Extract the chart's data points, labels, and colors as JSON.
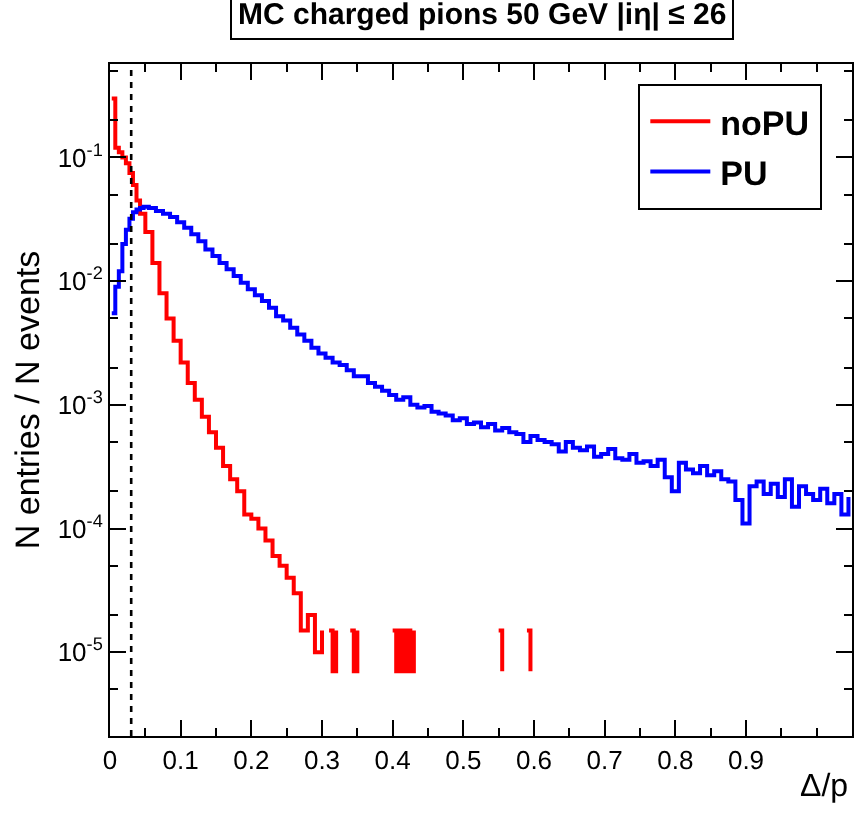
{
  "chart_data": {
    "type": "step",
    "title": "MC charged pions 50 GeV |iη| ≤ 26",
    "xlabel": "Δ/p",
    "ylabel": "N entries / N events",
    "xlim": [
      0,
      1.05
    ],
    "ylim": [
      2.1e-06,
      0.57
    ],
    "log": "y",
    "grid": false,
    "legend": "top right",
    "marker": "none",
    "line_style": "solid",
    "xticks": [
      0,
      0.1,
      0.2,
      0.3,
      0.4,
      0.5,
      0.6,
      0.7,
      0.8,
      0.9
    ],
    "yticks": [
      {
        "value": 1e-05,
        "label": "10$^{-5}$"
      },
      {
        "value": 0.0001,
        "label": "10$^{-4}$"
      },
      {
        "value": 0.001,
        "label": "10$^{-3}$"
      },
      {
        "value": 0.01,
        "label": "10$^{-2}$"
      },
      {
        "value": 0.1,
        "label": "10$^{-1}$"
      }
    ],
    "ref_lines": [
      {
        "axis": "x",
        "value": 0.03,
        "line_style": "dotted",
        "color": "#000000"
      }
    ],
    "series": [
      {
        "name": "noPU",
        "color": "#ff0000",
        "x": [
          0.0025,
          0.0075,
          0.0125,
          0.0175,
          0.0225,
          0.0275,
          0.0325,
          0.0375,
          0.0425,
          0.05,
          0.06,
          0.07,
          0.08,
          0.09,
          0.1,
          0.11,
          0.12,
          0.13,
          0.14,
          0.15,
          0.16,
          0.17,
          0.18,
          0.19,
          0.2,
          0.21,
          0.22,
          0.23,
          0.24,
          0.25,
          0.26,
          0.27,
          0.28,
          0.29,
          0.3,
          0.305,
          0.31,
          0.315,
          0.32,
          0.325,
          0.34,
          0.345,
          0.35,
          0.355,
          0.4,
          0.405,
          0.41,
          0.415,
          0.42,
          0.425,
          0.43,
          0.435,
          0.55,
          0.555,
          0.56,
          0.59,
          0.595
        ],
        "values": [
          0.3,
          0.12,
          0.11,
          0.1,
          0.09,
          0.075,
          0.06,
          0.045,
          0.035,
          0.025,
          0.014,
          0.008,
          0.005,
          0.0033,
          0.0022,
          0.0015,
          0.0011,
          0.0008,
          0.0006,
          0.00045,
          0.00032,
          0.00025,
          0.0002,
          0.00013,
          0.00012,
          0.0001,
          8e-05,
          6e-05,
          5e-05,
          4e-05,
          3e-05,
          1.5e-05,
          2e-05,
          1e-05,
          1.5e-05,
          null,
          1.5e-05,
          7e-06,
          1.5e-05,
          null,
          1.5e-05,
          7e-06,
          1.5e-05,
          null,
          1.5e-05,
          7e-06,
          1.5e-05,
          7e-06,
          1.5e-05,
          7e-06,
          1.5e-05,
          null,
          1.5e-05,
          7e-06,
          null,
          1.5e-05,
          7e-06
        ]
      },
      {
        "name": "PU",
        "color": "#0000ff",
        "x": [
          0.0025,
          0.0075,
          0.0125,
          0.0175,
          0.0225,
          0.0275,
          0.0325,
          0.0375,
          0.0425,
          0.0475,
          0.055,
          0.065,
          0.075,
          0.085,
          0.095,
          0.105,
          0.115,
          0.125,
          0.135,
          0.145,
          0.155,
          0.165,
          0.175,
          0.185,
          0.195,
          0.205,
          0.215,
          0.225,
          0.235,
          0.245,
          0.255,
          0.265,
          0.275,
          0.285,
          0.295,
          0.305,
          0.315,
          0.325,
          0.335,
          0.345,
          0.355,
          0.365,
          0.375,
          0.385,
          0.395,
          0.405,
          0.415,
          0.425,
          0.435,
          0.445,
          0.455,
          0.465,
          0.475,
          0.485,
          0.495,
          0.505,
          0.515,
          0.525,
          0.535,
          0.545,
          0.555,
          0.565,
          0.575,
          0.585,
          0.595,
          0.605,
          0.615,
          0.625,
          0.635,
          0.645,
          0.655,
          0.665,
          0.675,
          0.685,
          0.695,
          0.705,
          0.715,
          0.725,
          0.735,
          0.745,
          0.755,
          0.765,
          0.775,
          0.785,
          0.795,
          0.805,
          0.815,
          0.825,
          0.835,
          0.845,
          0.855,
          0.865,
          0.875,
          0.885,
          0.895,
          0.905,
          0.915,
          0.925,
          0.935,
          0.945,
          0.955,
          0.965,
          0.975,
          0.985,
          0.995,
          1.005,
          1.015,
          1.025,
          1.035,
          1.045
        ],
        "values": [
          0.0055,
          0.009,
          0.012,
          0.02,
          0.026,
          0.032,
          0.036,
          0.038,
          0.039,
          0.04,
          0.039,
          0.037,
          0.035,
          0.033,
          0.03,
          0.027,
          0.024,
          0.021,
          0.018,
          0.016,
          0.014,
          0.0125,
          0.011,
          0.0097,
          0.0086,
          0.0077,
          0.0069,
          0.0061,
          0.0052,
          0.0048,
          0.0042,
          0.0037,
          0.0033,
          0.0029,
          0.0026,
          0.0024,
          0.0022,
          0.0021,
          0.0019,
          0.0017,
          0.0017,
          0.0015,
          0.0014,
          0.0013,
          0.0012,
          0.0011,
          0.00115,
          0.001,
          0.00095,
          0.00098,
          0.00088,
          0.00085,
          0.00082,
          0.00075,
          0.00078,
          0.0007,
          0.00072,
          0.00066,
          0.0007,
          0.00062,
          0.00065,
          0.0006,
          0.00058,
          0.0005,
          0.00056,
          0.00052,
          0.0005,
          0.00048,
          0.00042,
          0.0005,
          0.00045,
          0.00043,
          0.00046,
          0.00038,
          0.0004,
          0.00044,
          0.00037,
          0.00036,
          0.0004,
          0.00034,
          0.00035,
          0.00032,
          0.00036,
          0.00026,
          0.0002,
          0.00034,
          0.0003,
          0.00028,
          0.00032,
          0.00027,
          0.00029,
          0.00025,
          0.00024,
          0.00017,
          0.00011,
          0.00022,
          0.00024,
          0.00019,
          0.00023,
          0.00018,
          0.00025,
          0.00015,
          0.00022,
          0.00019,
          0.00017,
          0.00021,
          0.00016,
          0.00019,
          0.00013,
          0.00018
        ]
      }
    ]
  }
}
